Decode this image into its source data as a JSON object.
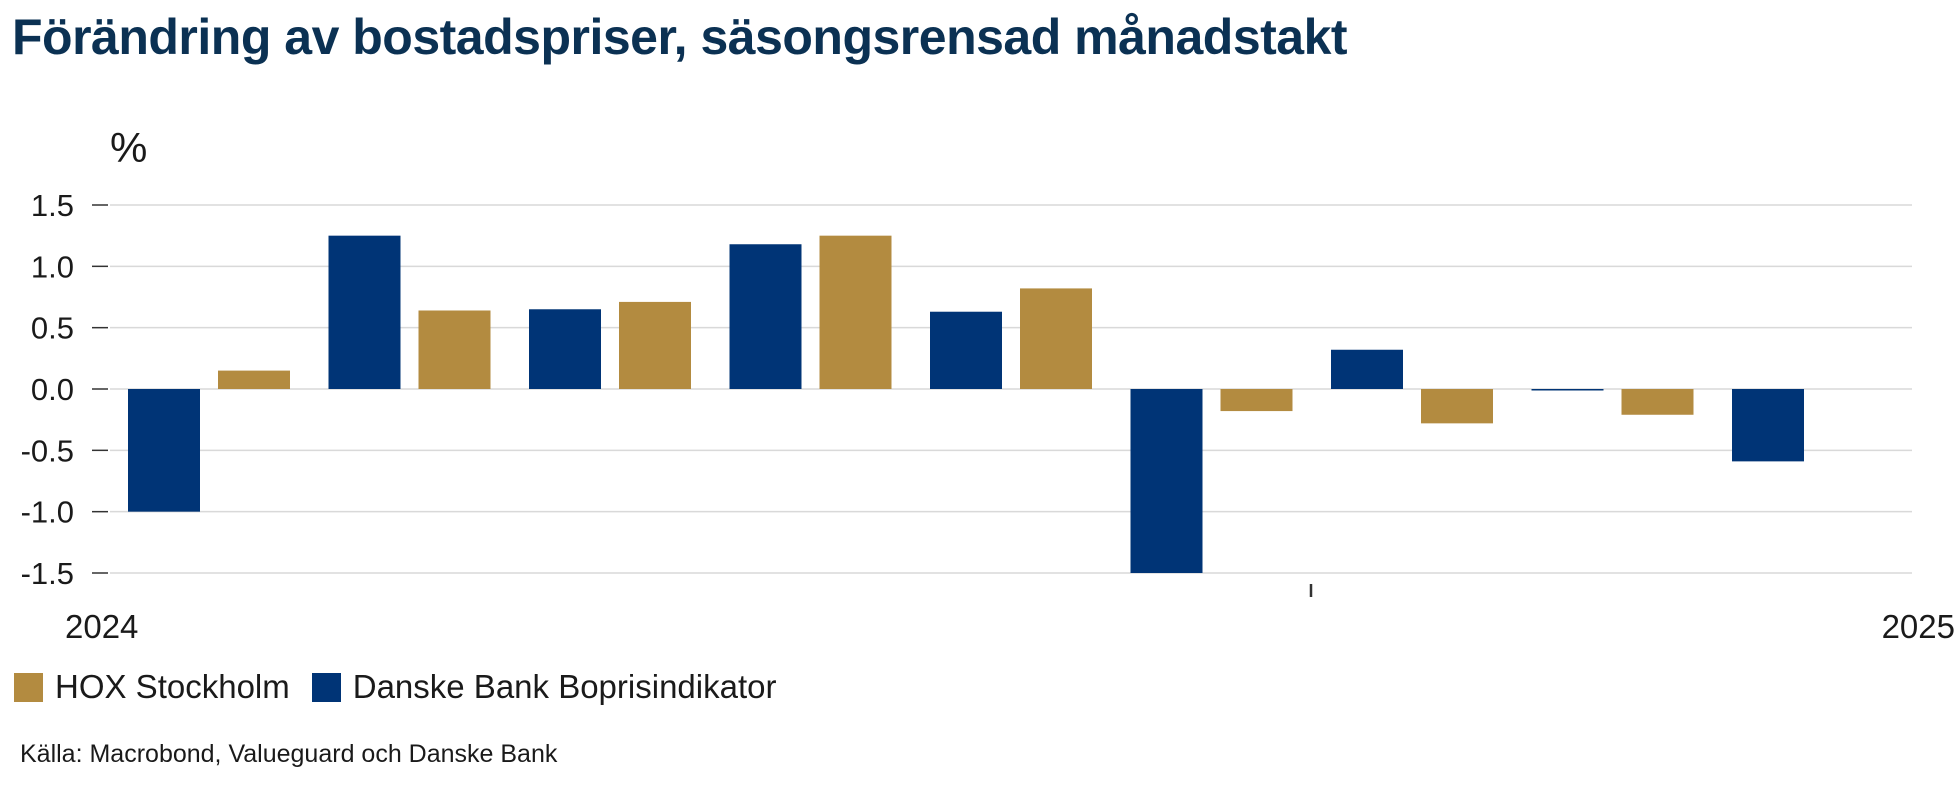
{
  "title": "Förändring av bostadspriser, säsongsrensad månadstakt",
  "source": "Källa: Macrobond, Valueguard och Danske Bank",
  "colors": {
    "hox": "#b38b40",
    "danske": "#003476",
    "grid": "#d9d9d9",
    "text": "#1a1a1a"
  },
  "legend": [
    {
      "label": "HOX Stockholm",
      "color": "#b38b40"
    },
    {
      "label": "Danske Bank Boprisindikator",
      "color": "#003476"
    }
  ],
  "chart_data": {
    "type": "bar",
    "ylabel": "%",
    "ylim": [
      -1.5,
      1.5
    ],
    "yticks": [
      1.5,
      1.0,
      0.5,
      0.0,
      -0.5,
      -1.0,
      -1.5
    ],
    "ytick_labels": [
      "1.5",
      "1.0",
      "0.5",
      "0.0",
      "-0.5",
      "-1.0",
      "-1.5"
    ],
    "x_labels": [
      "2024",
      "2025"
    ],
    "grid": true,
    "legend_position": "bottom-left",
    "periods": 9,
    "series": [
      {
        "name": "Danske Bank Boprisindikator",
        "values": [
          -1.0,
          1.25,
          0.65,
          1.18,
          0.63,
          -1.5,
          0.32,
          -0.01,
          -0.59
        ]
      },
      {
        "name": "HOX Stockholm",
        "values": [
          0.15,
          0.64,
          0.71,
          1.25,
          0.82,
          -0.18,
          -0.28,
          -0.21,
          null
        ]
      }
    ]
  }
}
